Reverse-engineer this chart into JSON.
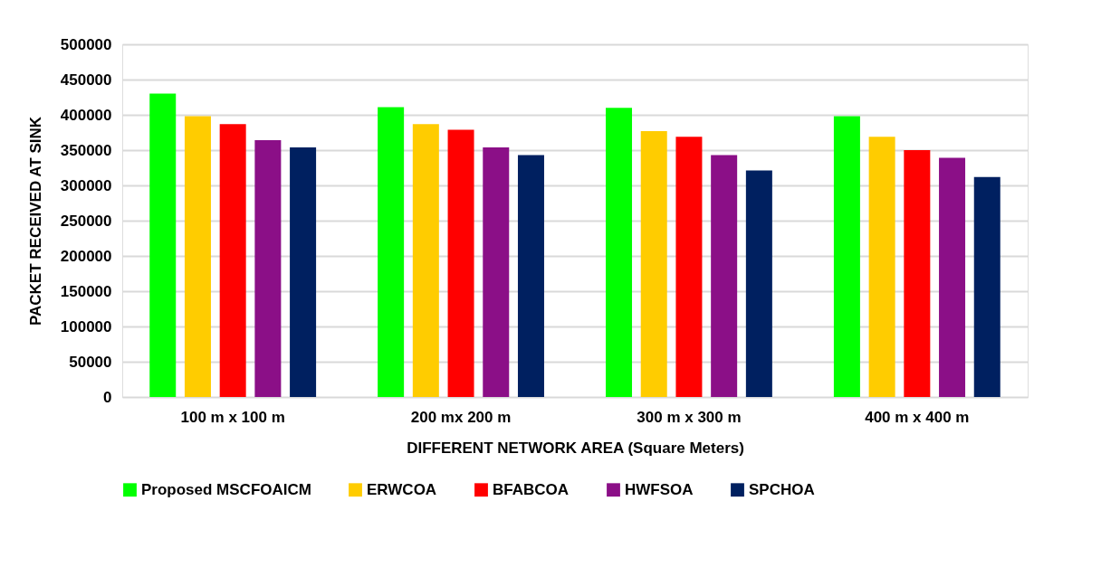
{
  "chart_data": {
    "type": "bar",
    "xlabel": "DIFFERENT NETWORK AREA (Square Meters)",
    "ylabel": "PACKET RECEIVED AT SINK",
    "categories": [
      "100 m x 100 m",
      "200 mx 200 m",
      "300 m x 300 m",
      "400 m x 400 m"
    ],
    "series": [
      {
        "name": "Proposed MSCFOAICM",
        "color": "#00ff00",
        "values": [
          430000,
          411000,
          410000,
          398000
        ]
      },
      {
        "name": "ERWCOA",
        "color": "#ffcc00",
        "values": [
          398000,
          387000,
          377000,
          369000
        ]
      },
      {
        "name": "BFABCOA",
        "color": "#ff0000",
        "values": [
          387000,
          379000,
          369000,
          350000
        ]
      },
      {
        "name": "HWFSOA",
        "color": "#8b0f87",
        "values": [
          364000,
          354000,
          343000,
          339000
        ]
      },
      {
        "name": "SPCHOA",
        "color": "#002060",
        "values": [
          354000,
          343000,
          321000,
          312000
        ]
      }
    ],
    "ylim": [
      0,
      500000
    ],
    "yticks": [
      0,
      50000,
      100000,
      150000,
      200000,
      250000,
      300000,
      350000,
      400000,
      450000,
      500000
    ],
    "grid": "y",
    "legend": "bottom"
  }
}
